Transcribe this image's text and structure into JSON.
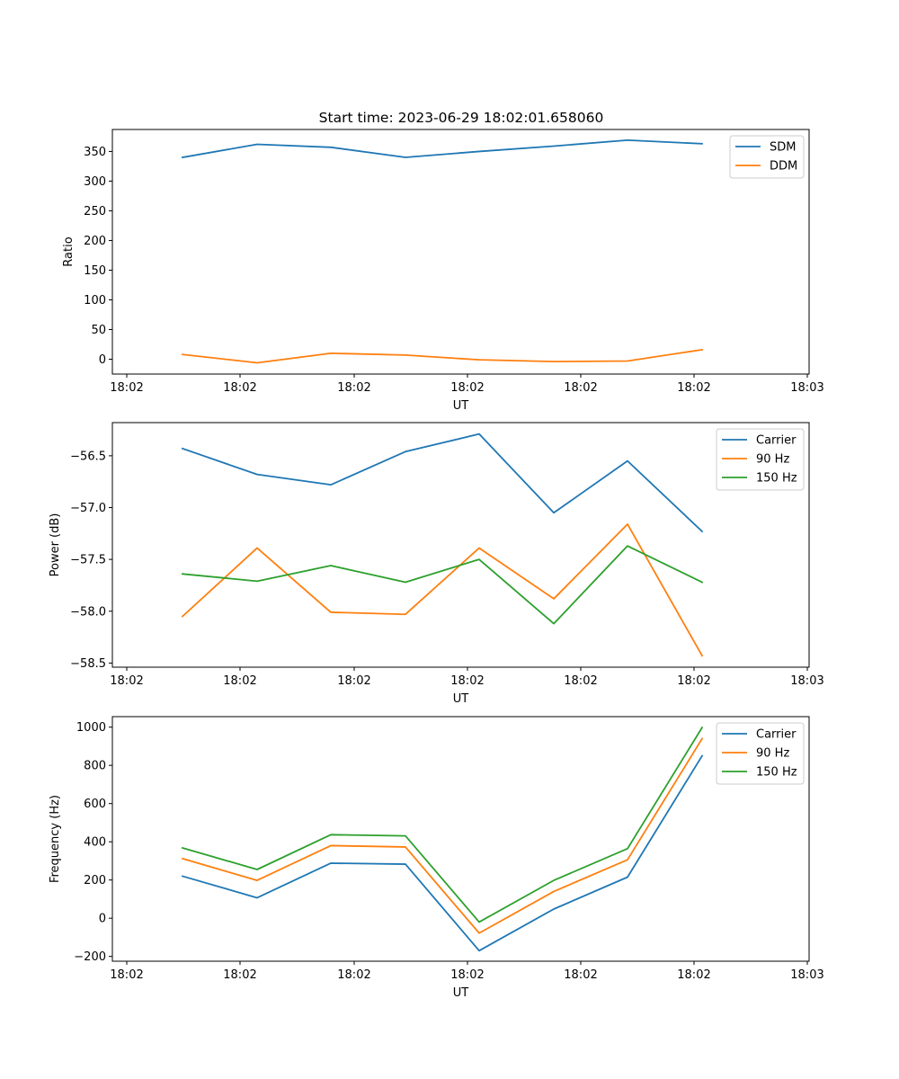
{
  "figure": {
    "title": "Start time: 2023-06-29 18:02:01.658060"
  },
  "chart_data": [
    {
      "type": "line",
      "title": "Start time: 2023-06-29 18:02:01.658060",
      "xlabel": "UT",
      "ylabel": "Ratio",
      "x_tick_labels": [
        "18:02",
        "18:02",
        "18:02",
        "18:02",
        "18:02",
        "18:02",
        "18:03"
      ],
      "ylim": [
        -25,
        387
      ],
      "y_ticks": [
        0,
        50,
        100,
        150,
        200,
        250,
        300,
        350
      ],
      "legend_position": "top-right",
      "grid": false,
      "series": [
        {
          "name": "SDM",
          "color": "#1f77b4",
          "values": [
            340,
            362,
            357,
            340,
            350,
            359,
            369,
            363
          ]
        },
        {
          "name": "DDM",
          "color": "#ff7f0e",
          "values": [
            8,
            -6,
            10,
            7,
            -1,
            -4,
            -3,
            16
          ]
        }
      ]
    },
    {
      "type": "line",
      "title": "",
      "xlabel": "UT",
      "ylabel": "Power (dB)",
      "x_tick_labels": [
        "18:02",
        "18:02",
        "18:02",
        "18:02",
        "18:02",
        "18:02",
        "18:03"
      ],
      "ylim": [
        -58.54,
        -56.18
      ],
      "y_ticks": [
        -58.5,
        -58.0,
        -57.5,
        -57.0,
        -56.5
      ],
      "y_tick_labels": [
        "−58.5",
        "−58.0",
        "−57.5",
        "−57.0",
        "−56.5"
      ],
      "legend_position": "top-right",
      "grid": false,
      "series": [
        {
          "name": "Carrier",
          "color": "#1f77b4",
          "values": [
            -56.43,
            -56.68,
            -56.78,
            -56.46,
            -56.29,
            -57.05,
            -56.55,
            -57.23
          ]
        },
        {
          "name": "90 Hz",
          "color": "#ff7f0e",
          "values": [
            -58.05,
            -57.39,
            -58.01,
            -58.03,
            -57.39,
            -57.88,
            -57.16,
            -58.43
          ]
        },
        {
          "name": "150 Hz",
          "color": "#2ca02c",
          "values": [
            -57.64,
            -57.71,
            -57.56,
            -57.72,
            -57.5,
            -58.12,
            -57.37,
            -57.72
          ]
        }
      ]
    },
    {
      "type": "line",
      "title": "",
      "xlabel": "UT",
      "ylabel": "Frequency (Hz)",
      "x_tick_labels": [
        "18:02",
        "18:02",
        "18:02",
        "18:02",
        "18:02",
        "18:02",
        "18:03"
      ],
      "ylim": [
        -225,
        1055
      ],
      "y_ticks": [
        -200,
        0,
        200,
        400,
        600,
        800,
        1000
      ],
      "y_tick_labels": [
        "−200",
        "0",
        "200",
        "400",
        "600",
        "800",
        "1000"
      ],
      "legend_position": "top-right",
      "grid": false,
      "series": [
        {
          "name": "Carrier",
          "color": "#1f77b4",
          "values": [
            220,
            107,
            288,
            283,
            -170,
            48,
            215,
            850
          ]
        },
        {
          "name": "90 Hz",
          "color": "#ff7f0e",
          "values": [
            312,
            198,
            380,
            373,
            -78,
            140,
            306,
            940
          ]
        },
        {
          "name": "150 Hz",
          "color": "#2ca02c",
          "values": [
            368,
            255,
            437,
            431,
            -20,
            198,
            364,
            998
          ]
        }
      ]
    }
  ]
}
